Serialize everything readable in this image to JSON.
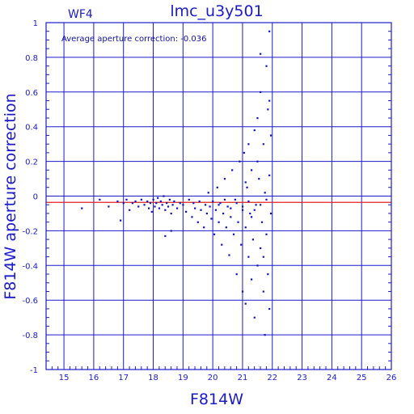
{
  "chart_data": {
    "type": "scatter",
    "title": "lmc_u3y501",
    "subtitle": "WF4",
    "annotation": "Average aperture correction: -0.036",
    "xlabel": "F814W",
    "ylabel": "F814W aperture correction",
    "xlim": [
      14.4,
      26
    ],
    "ylim": [
      -1,
      1
    ],
    "x_ticks": [
      15,
      16,
      17,
      18,
      19,
      20,
      21,
      22,
      23,
      24,
      25,
      26
    ],
    "y_ticks": [
      -1,
      -0.8,
      -0.6,
      -0.4,
      -0.2,
      0,
      0.2,
      0.4,
      0.6,
      0.8,
      1
    ],
    "y_tick_labels": [
      "-1",
      "-0.8",
      "-0.6",
      "-0.4",
      "-0.2",
      "0",
      "0.2",
      "0.4",
      "0.6",
      "0.8",
      "1"
    ],
    "grid": true,
    "reference_line": {
      "y": -0.036,
      "color": "#e02020"
    },
    "colors": {
      "axes": "#1a1acc",
      "points": "#1010c8",
      "reference": "#e02020"
    },
    "series": [
      {
        "points": [
          [
            15.6,
            -0.07
          ],
          [
            16.2,
            -0.02
          ],
          [
            16.5,
            -0.06
          ],
          [
            16.8,
            -0.03
          ],
          [
            16.9,
            -0.14
          ],
          [
            17.0,
            -0.04
          ],
          [
            17.1,
            -0.02
          ],
          [
            17.2,
            -0.08
          ],
          [
            17.3,
            -0.04
          ],
          [
            17.4,
            -0.03
          ],
          [
            17.5,
            -0.06
          ],
          [
            17.6,
            -0.02
          ],
          [
            17.7,
            -0.05
          ],
          [
            17.8,
            -0.03
          ],
          [
            17.85,
            -0.07
          ],
          [
            17.9,
            -0.04
          ],
          [
            17.95,
            -0.09
          ],
          [
            18.0,
            -0.02
          ],
          [
            18.05,
            -0.06
          ],
          [
            18.1,
            -0.04
          ],
          [
            18.15,
            -0.01
          ],
          [
            18.2,
            -0.07
          ],
          [
            18.25,
            -0.03
          ],
          [
            18.3,
            -0.05
          ],
          [
            18.35,
            0.0
          ],
          [
            18.4,
            -0.08
          ],
          [
            18.45,
            -0.04
          ],
          [
            18.5,
            -0.06
          ],
          [
            18.55,
            -0.02
          ],
          [
            18.6,
            -0.1
          ],
          [
            18.65,
            -0.05
          ],
          [
            18.7,
            -0.03
          ],
          [
            18.8,
            -0.07
          ],
          [
            18.9,
            -0.04
          ],
          [
            18.4,
            -0.23
          ],
          [
            18.6,
            -0.2
          ],
          [
            19.0,
            -0.05
          ],
          [
            19.1,
            -0.09
          ],
          [
            19.2,
            -0.02
          ],
          [
            19.3,
            -0.12
          ],
          [
            19.35,
            -0.04
          ],
          [
            19.4,
            -0.07
          ],
          [
            19.5,
            -0.15
          ],
          [
            19.55,
            -0.03
          ],
          [
            19.6,
            -0.08
          ],
          [
            19.7,
            -0.18
          ],
          [
            19.75,
            -0.05
          ],
          [
            19.8,
            -0.1
          ],
          [
            19.85,
            0.02
          ],
          [
            19.9,
            -0.06
          ],
          [
            19.95,
            -0.13
          ],
          [
            20.0,
            -0.03
          ],
          [
            20.05,
            -0.22
          ],
          [
            20.1,
            -0.08
          ],
          [
            20.15,
            0.05
          ],
          [
            20.2,
            -0.15
          ],
          [
            20.25,
            -0.04
          ],
          [
            20.3,
            -0.28
          ],
          [
            20.35,
            -0.1
          ],
          [
            20.4,
            0.1
          ],
          [
            20.45,
            -0.18
          ],
          [
            20.5,
            -0.06
          ],
          [
            20.55,
            -0.34
          ],
          [
            20.6,
            -0.12
          ],
          [
            20.65,
            0.15
          ],
          [
            20.7,
            -0.22
          ],
          [
            20.75,
            -0.02
          ],
          [
            20.8,
            -0.45
          ],
          [
            20.85,
            -0.15
          ],
          [
            20.9,
            0.2
          ],
          [
            20.95,
            -0.28
          ],
          [
            21.0,
            -0.08
          ],
          [
            21.0,
            -0.55
          ],
          [
            21.05,
            0.25
          ],
          [
            21.1,
            -0.18
          ],
          [
            21.1,
            -0.62
          ],
          [
            21.15,
            0.05
          ],
          [
            21.2,
            -0.35
          ],
          [
            21.2,
            0.3
          ],
          [
            21.25,
            -0.1
          ],
          [
            21.3,
            -0.48
          ],
          [
            21.3,
            0.15
          ],
          [
            21.35,
            -0.25
          ],
          [
            21.4,
            0.38
          ],
          [
            21.4,
            -0.7
          ],
          [
            21.45,
            -0.05
          ],
          [
            21.5,
            -0.4
          ],
          [
            21.5,
            0.45
          ],
          [
            21.55,
            0.1
          ],
          [
            21.6,
            -0.3
          ],
          [
            21.6,
            0.6
          ],
          [
            21.65,
            -0.15
          ],
          [
            21.7,
            -0.55
          ],
          [
            21.7,
            0.3
          ],
          [
            21.75,
            0.02
          ],
          [
            21.75,
            -0.8
          ],
          [
            21.8,
            0.75
          ],
          [
            21.8,
            -0.22
          ],
          [
            21.85,
            0.5
          ],
          [
            21.85,
            -0.45
          ],
          [
            21.9,
            0.95
          ],
          [
            21.9,
            0.12
          ],
          [
            21.9,
            -0.65
          ],
          [
            21.95,
            0.35
          ],
          [
            21.95,
            -0.1
          ],
          [
            20.2,
            -0.05
          ],
          [
            20.4,
            -0.02
          ],
          [
            20.6,
            -0.07
          ],
          [
            20.8,
            -0.04
          ],
          [
            21.0,
            -0.06
          ],
          [
            21.2,
            -0.03
          ],
          [
            21.4,
            -0.08
          ],
          [
            21.6,
            -0.05
          ],
          [
            21.8,
            -0.02
          ],
          [
            21.1,
            0.08
          ],
          [
            21.3,
            -0.12
          ],
          [
            21.5,
            0.2
          ],
          [
            21.7,
            -0.35
          ],
          [
            21.9,
            0.55
          ],
          [
            21.6,
            0.82
          ]
        ]
      }
    ]
  }
}
